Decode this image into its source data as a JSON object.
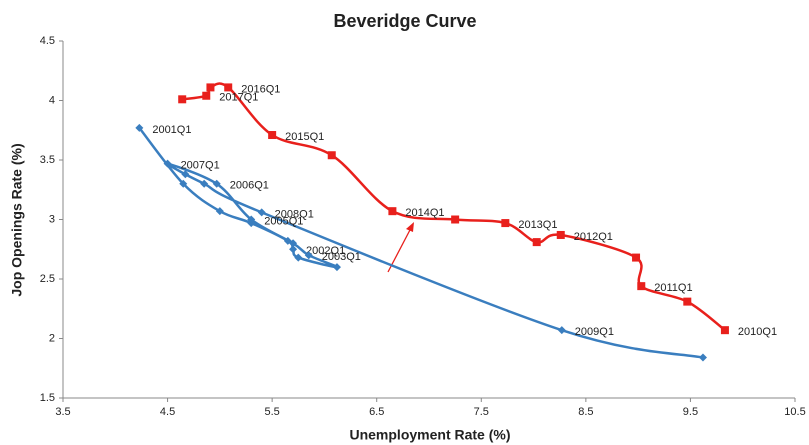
{
  "chart_data": {
    "type": "line",
    "title": "Beveridge Curve",
    "x_label": "Unemployment Rate (%)",
    "y_label": "Jop Openings Rate (%)",
    "xlim": [
      3.5,
      10.5
    ],
    "xticks": [
      3.5,
      4.5,
      5.5,
      6.5,
      7.5,
      8.5,
      9.5,
      10.5
    ],
    "ylim": [
      1.5,
      4.5
    ],
    "yticks": [
      1.5,
      2,
      2.5,
      3,
      3.5,
      4,
      4.5
    ],
    "grid": false,
    "series": [
      {
        "color": "#3a7ebf",
        "marker": "diamond",
        "x": [
          4.23,
          4.65,
          5.0,
          5.3,
          5.65,
          5.7,
          5.75,
          6.12,
          5.85,
          5.7,
          5.3,
          4.97,
          4.5,
          4.67,
          4.85,
          5.4,
          8.27,
          9.62
        ],
        "values": [
          3.77,
          3.3,
          3.07,
          2.97,
          2.82,
          2.75,
          2.68,
          2.6,
          2.7,
          2.8,
          3.0,
          3.3,
          3.47,
          3.38,
          3.3,
          3.06,
          2.07,
          1.84
        ],
        "labels": [
          "2001Q1",
          null,
          null,
          null,
          null,
          "2002Q1",
          null,
          null,
          "2003Q1",
          null,
          "2005Q1",
          "2006Q1",
          "2007Q1",
          null,
          null,
          "2008Q1",
          "2009Q1",
          null
        ]
      },
      {
        "color": "#e8201c",
        "marker": "square",
        "x": [
          9.83,
          9.47,
          9.03,
          8.98,
          8.26,
          8.03,
          7.73,
          7.25,
          6.65,
          6.07,
          5.5,
          5.08,
          4.91,
          4.87,
          4.64
        ],
        "values": [
          2.07,
          2.31,
          2.44,
          2.68,
          2.87,
          2.81,
          2.97,
          3.0,
          3.07,
          3.54,
          3.71,
          4.11,
          4.11,
          4.04,
          4.01
        ],
        "labels": [
          "2010Q1",
          null,
          "2011Q1",
          null,
          "2012Q1",
          null,
          "2013Q1",
          null,
          "2014Q1",
          null,
          "2015Q1",
          "2016Q1",
          null,
          "2017Q1",
          null
        ]
      }
    ]
  }
}
